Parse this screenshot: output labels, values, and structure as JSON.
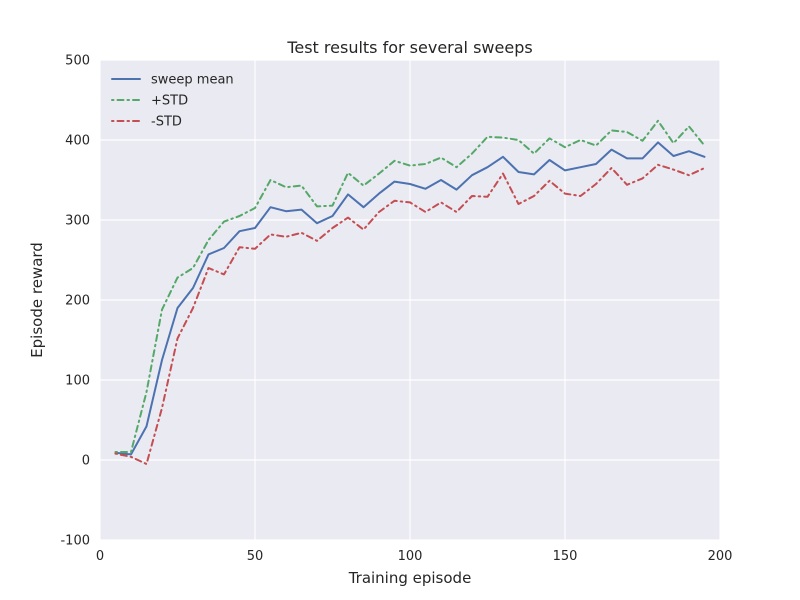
{
  "chart_data": {
    "type": "line",
    "title": "Test results for several sweeps",
    "xlabel": "Training episode",
    "ylabel": "Episode reward",
    "xlim": [
      0,
      200
    ],
    "ylim": [
      -100,
      500
    ],
    "xticks": [
      0,
      50,
      100,
      150,
      200
    ],
    "yticks": [
      -100,
      0,
      100,
      200,
      300,
      400,
      500
    ],
    "grid": true,
    "legend_position": "top-left",
    "background_color": "#eaeaf2",
    "x": [
      5,
      10,
      15,
      20,
      25,
      30,
      35,
      40,
      45,
      50,
      55,
      60,
      65,
      70,
      75,
      80,
      85,
      90,
      95,
      100,
      105,
      110,
      115,
      120,
      125,
      130,
      135,
      140,
      145,
      150,
      155,
      160,
      165,
      170,
      175,
      180,
      185,
      190,
      195
    ],
    "series": [
      {
        "name": "sweep mean",
        "color": "#4c72b0",
        "style": "solid",
        "values": [
          9,
          7,
          42,
          125,
          190,
          215,
          257,
          265,
          286,
          290,
          316,
          311,
          313,
          296,
          305,
          332,
          316,
          333,
          348,
          345,
          339,
          350,
          338,
          356,
          366,
          379,
          360,
          357,
          375,
          362,
          366,
          370,
          388,
          377,
          377,
          397,
          380,
          386,
          379
        ]
      },
      {
        "name": "+STD",
        "color": "#55a868",
        "style": "dashdot",
        "values": [
          10,
          10,
          85,
          188,
          228,
          240,
          275,
          298,
          305,
          315,
          350,
          341,
          343,
          317,
          318,
          359,
          343,
          358,
          374,
          368,
          370,
          378,
          366,
          383,
          404,
          403,
          400,
          383,
          402,
          391,
          400,
          393,
          412,
          410,
          399,
          424,
          396,
          417,
          393
        ]
      },
      {
        "name": "-STD",
        "color": "#c44e52",
        "style": "dashdot",
        "values": [
          8,
          4,
          -5,
          65,
          152,
          190,
          240,
          232,
          266,
          264,
          282,
          279,
          284,
          274,
          290,
          303,
          288,
          310,
          324,
          322,
          310,
          322,
          310,
          330,
          329,
          358,
          320,
          330,
          349,
          333,
          330,
          345,
          365,
          344,
          352,
          369,
          363,
          356,
          365
        ]
      }
    ]
  }
}
